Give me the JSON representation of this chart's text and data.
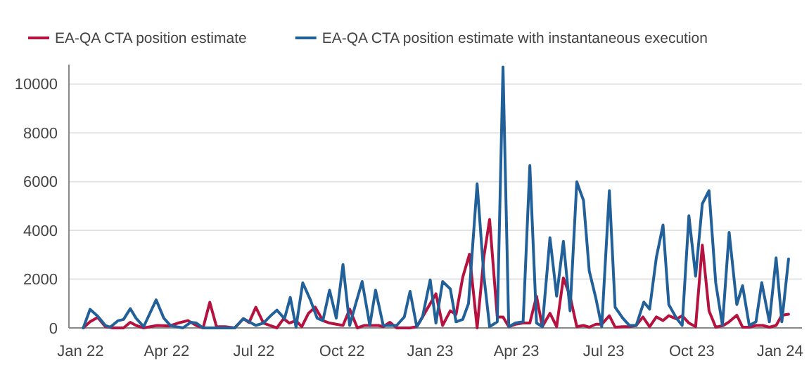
{
  "chart_data": {
    "type": "line",
    "legend": "top left",
    "grid": "y",
    "xlim": [
      "2021-12-20",
      "2024-01-24"
    ],
    "ylim": [
      0,
      10800
    ],
    "yticks": [
      0,
      2000,
      4000,
      6000,
      8000,
      10000
    ],
    "xticks": [
      {
        "value": "2022-01-01",
        "label": "Jan 22"
      },
      {
        "value": "2022-04-01",
        "label": "Apr 22"
      },
      {
        "value": "2022-07-01",
        "label": "Jul 22"
      },
      {
        "value": "2022-10-01",
        "label": "Oct 22"
      },
      {
        "value": "2023-01-01",
        "label": "Jan 23"
      },
      {
        "value": "2023-04-01",
        "label": "Apr 23"
      },
      {
        "value": "2023-07-01",
        "label": "Jul 23"
      },
      {
        "value": "2023-10-01",
        "label": "Oct 23"
      },
      {
        "value": "2024-01-01",
        "label": "Jan 24"
      }
    ],
    "series": [
      {
        "name": "EA-QA CTA position estimate",
        "color": "#b5123f",
        "x": [
          "2022-01-04",
          "2022-01-11",
          "2022-01-19",
          "2022-01-27",
          "2022-02-04",
          "2022-02-15",
          "2022-02-22",
          "2022-02-28",
          "2022-03-08",
          "2022-03-22",
          "2022-04-04",
          "2022-04-13",
          "2022-04-23",
          "2022-05-02",
          "2022-05-09",
          "2022-05-16",
          "2022-05-23",
          "2022-06-01",
          "2022-06-11",
          "2022-06-20",
          "2022-06-26",
          "2022-07-03",
          "2022-07-11",
          "2022-07-18",
          "2022-07-25",
          "2022-08-01",
          "2022-08-07",
          "2022-08-14",
          "2022-08-20",
          "2022-08-27",
          "2022-09-03",
          "2022-09-11",
          "2022-09-18",
          "2022-09-25",
          "2022-10-02",
          "2022-10-09",
          "2022-10-17",
          "2022-10-24",
          "2022-10-31",
          "2022-11-08",
          "2022-11-13",
          "2022-11-20",
          "2022-11-27",
          "2022-12-11",
          "2022-12-18",
          "2022-12-24",
          "2023-01-07",
          "2023-01-14",
          "2023-01-22",
          "2023-01-28",
          "2023-02-04",
          "2023-02-11",
          "2023-02-19",
          "2023-02-26",
          "2023-03-04",
          "2023-03-12",
          "2023-03-18",
          "2023-03-24",
          "2023-03-31",
          "2023-04-08",
          "2023-04-15",
          "2023-04-22",
          "2023-04-28",
          "2023-05-06",
          "2023-05-13",
          "2023-05-20",
          "2023-05-27",
          "2023-06-03",
          "2023-06-10",
          "2023-06-16",
          "2023-06-23",
          "2023-06-29",
          "2023-07-07",
          "2023-07-13",
          "2023-07-21",
          "2023-07-28",
          "2023-08-04",
          "2023-08-11",
          "2023-08-18",
          "2023-08-25",
          "2023-09-01",
          "2023-09-07",
          "2023-09-15",
          "2023-09-21",
          "2023-09-28",
          "2023-10-05",
          "2023-10-12",
          "2023-10-19",
          "2023-10-26",
          "2023-11-03",
          "2023-11-09",
          "2023-11-17",
          "2023-11-23",
          "2023-11-30",
          "2023-12-07",
          "2023-12-14",
          "2023-12-21",
          "2023-12-28",
          "2024-01-03",
          "2024-01-10"
        ],
        "values": [
          0,
          250,
          430,
          50,
          0,
          0,
          230,
          100,
          0,
          100,
          80,
          200,
          300,
          100,
          0,
          1050,
          50,
          50,
          0,
          380,
          220,
          850,
          200,
          100,
          0,
          380,
          200,
          300,
          50,
          600,
          850,
          300,
          200,
          150,
          100,
          770,
          0,
          100,
          100,
          100,
          50,
          230,
          0,
          0,
          50,
          450,
          1400,
          100,
          700,
          550,
          2080,
          3020,
          0,
          2900,
          4450,
          450,
          450,
          50,
          150,
          200,
          200,
          1300,
          50,
          600,
          50,
          2050,
          1300,
          50,
          100,
          30,
          150,
          150,
          500,
          30,
          50,
          50,
          100,
          450,
          50,
          450,
          300,
          500,
          370,
          500,
          200,
          50,
          3400,
          700,
          30,
          100,
          250,
          520,
          30,
          30,
          100,
          100,
          30,
          100,
          520,
          560
        ]
      },
      {
        "name": "EA-QA CTA position estimate with instantaneous execution",
        "color": "#22609a",
        "x": [
          "2022-01-04",
          "2022-01-11",
          "2022-01-19",
          "2022-01-27",
          "2022-02-01",
          "2022-02-09",
          "2022-02-15",
          "2022-02-22",
          "2022-02-28",
          "2022-03-08",
          "2022-03-21",
          "2022-03-29",
          "2022-04-05",
          "2022-04-11",
          "2022-04-18",
          "2022-04-26",
          "2022-05-02",
          "2022-05-09",
          "2022-05-23",
          "2022-06-11",
          "2022-06-20",
          "2022-07-03",
          "2022-07-11",
          "2022-07-18",
          "2022-07-25",
          "2022-08-02",
          "2022-08-08",
          "2022-08-14",
          "2022-08-21",
          "2022-08-29",
          "2022-09-05",
          "2022-09-11",
          "2022-09-18",
          "2022-09-25",
          "2022-10-02",
          "2022-10-09",
          "2022-10-15",
          "2022-10-22",
          "2022-10-30",
          "2022-11-05",
          "2022-11-13",
          "2022-11-20",
          "2022-11-27",
          "2022-12-05",
          "2022-12-11",
          "2022-12-18",
          "2022-12-24",
          "2023-01-01",
          "2023-01-07",
          "2023-01-14",
          "2023-01-22",
          "2023-01-28",
          "2023-02-04",
          "2023-02-10",
          "2023-02-19",
          "2023-02-26",
          "2023-03-04",
          "2023-03-12",
          "2023-03-18",
          "2023-03-24",
          "2023-03-31",
          "2023-04-08",
          "2023-04-15",
          "2023-04-22",
          "2023-04-28",
          "2023-05-06",
          "2023-05-13",
          "2023-05-20",
          "2023-05-27",
          "2023-06-03",
          "2023-06-10",
          "2023-06-16",
          "2023-06-23",
          "2023-06-29",
          "2023-07-07",
          "2023-07-13",
          "2023-07-21",
          "2023-07-28",
          "2023-08-04",
          "2023-08-12",
          "2023-08-18",
          "2023-08-25",
          "2023-09-01",
          "2023-09-07",
          "2023-09-15",
          "2023-09-21",
          "2023-09-28",
          "2023-10-05",
          "2023-10-12",
          "2023-10-19",
          "2023-10-26",
          "2023-11-02",
          "2023-11-09",
          "2023-11-17",
          "2023-11-23",
          "2023-11-30",
          "2023-12-07",
          "2023-12-13",
          "2023-12-21",
          "2023-12-28",
          "2024-01-03",
          "2024-01-10"
        ],
        "values": [
          0,
          760,
          480,
          100,
          30,
          290,
          350,
          790,
          400,
          50,
          1150,
          400,
          100,
          50,
          0,
          230,
          200,
          0,
          0,
          0,
          380,
          100,
          200,
          480,
          730,
          380,
          1250,
          30,
          1850,
          1150,
          400,
          300,
          1550,
          400,
          2600,
          100,
          950,
          1900,
          100,
          1550,
          100,
          100,
          100,
          450,
          1500,
          50,
          450,
          1970,
          200,
          1900,
          1600,
          250,
          350,
          1000,
          5910,
          2150,
          50,
          250,
          10700,
          50,
          200,
          250,
          6660,
          200,
          50,
          3700,
          1300,
          3550,
          700,
          5990,
          5230,
          2340,
          1200,
          50,
          5630,
          850,
          400,
          100,
          100,
          1060,
          770,
          2880,
          4220,
          960,
          400,
          100,
          4600,
          2120,
          5090,
          5630,
          1850,
          100,
          3920,
          960,
          1730,
          100,
          250,
          1860,
          250,
          2870,
          250,
          2830
        ]
      }
    ]
  }
}
